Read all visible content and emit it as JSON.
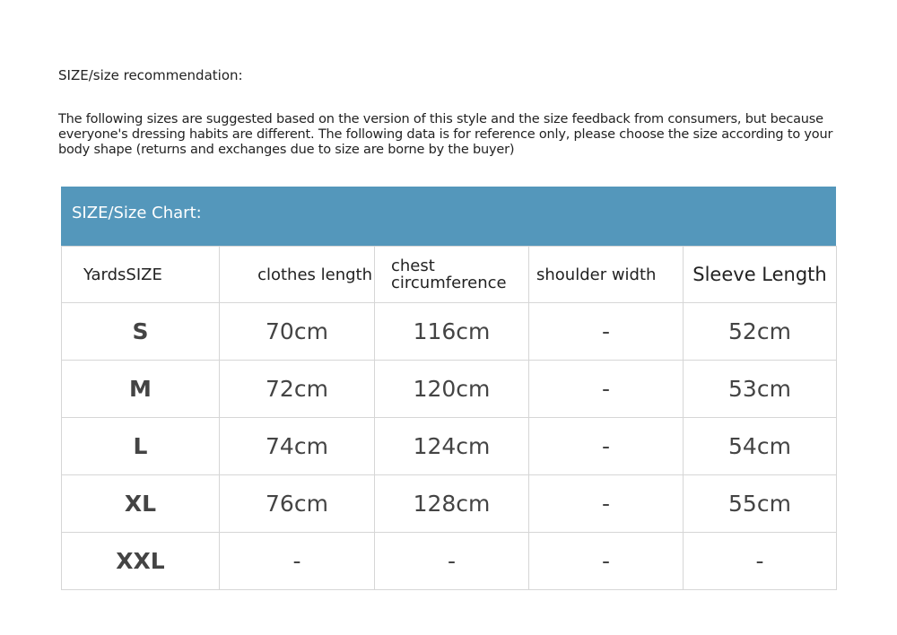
{
  "heading": "SIZE/size recommendation:",
  "intro": "The following sizes are suggested based on the version of this style and the size feedback from consumers, but because everyone's dressing habits are different. The following data is for reference only, please choose the size according to your body shape (returns and exchanges due to size are borne by the buyer)",
  "chart": {
    "title": "SIZE/Size Chart:",
    "header_color": "#5497bb",
    "columns": [
      "YardsSIZE",
      "clothes length",
      "chest circumference",
      "shoulder width",
      "Sleeve Length"
    ],
    "rows": [
      [
        "S",
        "70cm",
        "116cm",
        "-",
        "52cm"
      ],
      [
        "M",
        "72cm",
        "120cm",
        "-",
        "53cm"
      ],
      [
        "L",
        "74cm",
        "124cm",
        "-",
        "54cm"
      ],
      [
        "XL",
        "76cm",
        "128cm",
        "-",
        "55cm"
      ],
      [
        "XXL",
        "-",
        "-",
        "-",
        "-"
      ]
    ]
  }
}
